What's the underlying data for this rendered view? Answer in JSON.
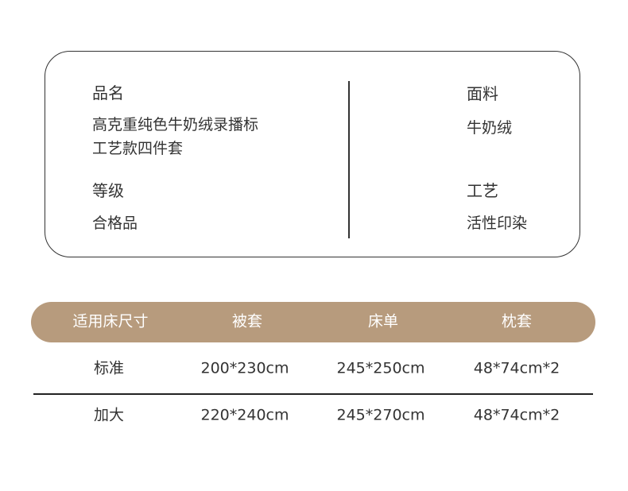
{
  "info": {
    "name_label": "品名",
    "name_line1": "高克重纯色牛奶绒录播标",
    "name_line2": "工艺款四件套",
    "grade_label": "等级",
    "grade_value": "合格品",
    "fabric_label": "面料",
    "fabric_value": "牛奶绒",
    "craft_label": "工艺",
    "craft_value": "活性印染"
  },
  "table": {
    "header_color": "#b79b7d",
    "headers": [
      "适用床尺寸",
      "被套",
      "床单",
      "枕套"
    ],
    "rows": [
      [
        "标准",
        "200*230cm",
        "245*250cm",
        "48*74cm*2"
      ],
      [
        "加大",
        "220*240cm",
        "245*270cm",
        "48*74cm*2"
      ]
    ]
  }
}
